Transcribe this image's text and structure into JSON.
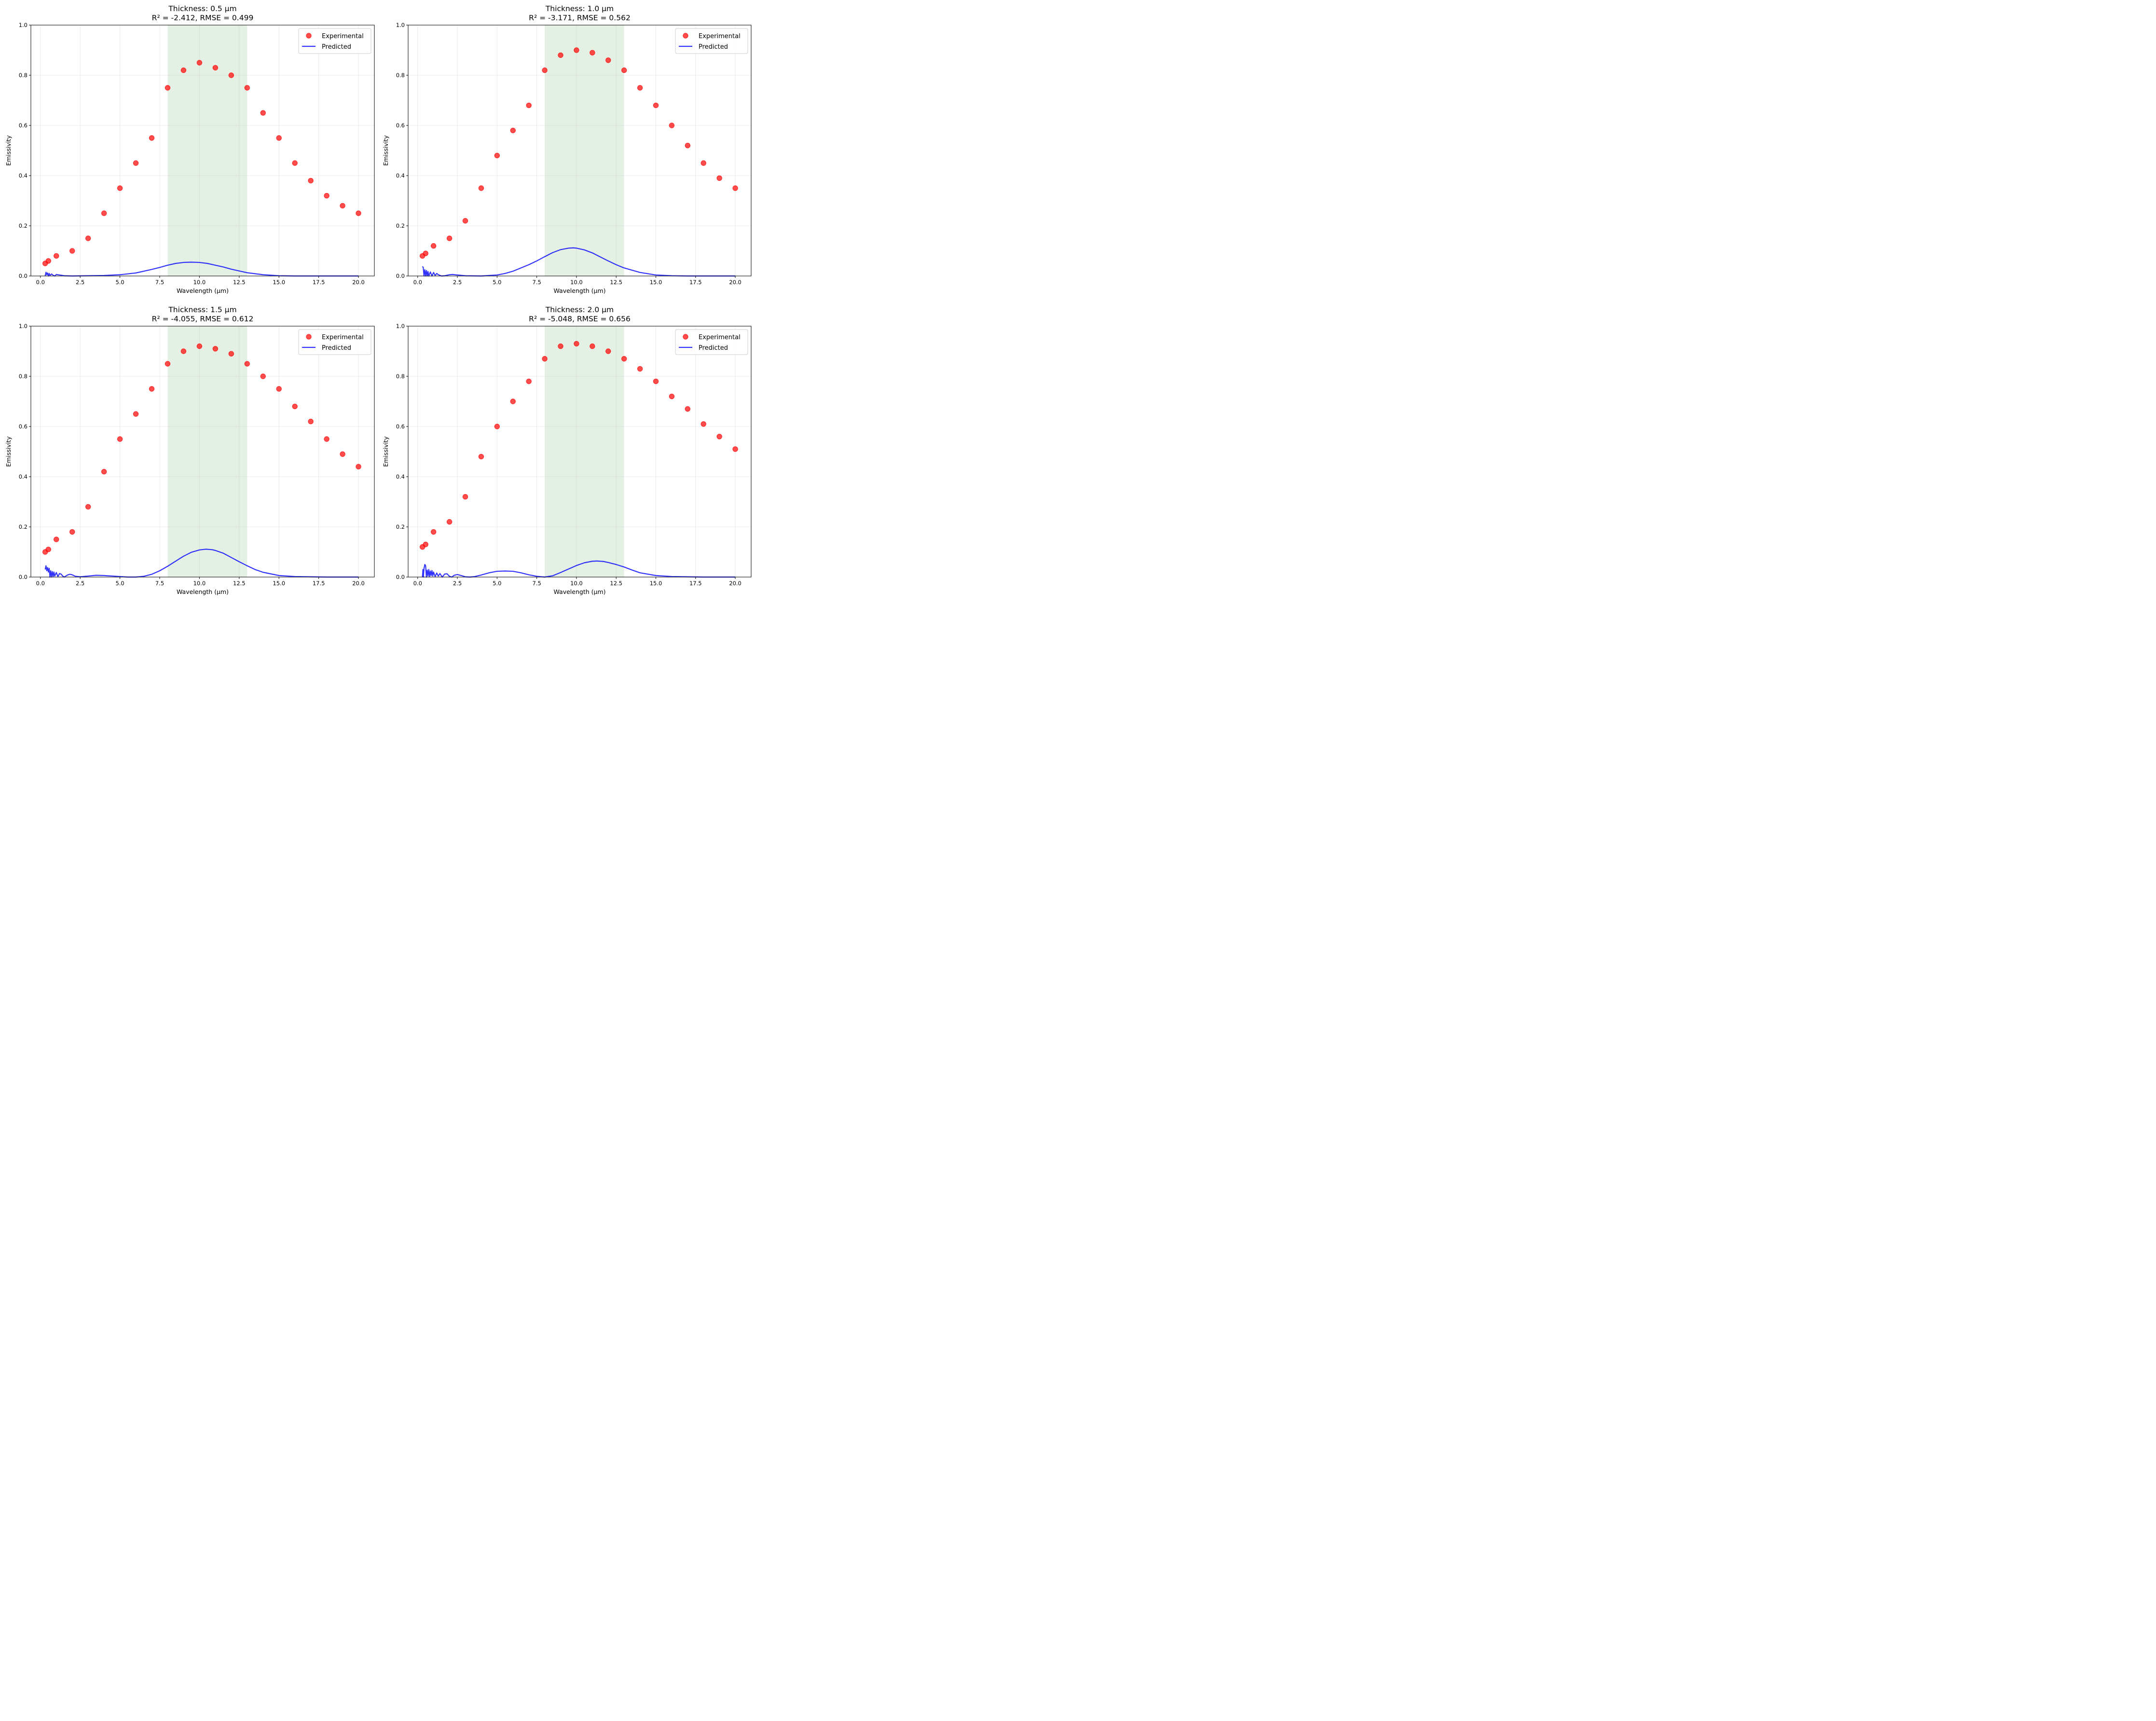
{
  "figure": {
    "panels": 4,
    "layout": "2x2"
  },
  "colors": {
    "experimental": "#ff0000",
    "predicted": "#0000ff",
    "band": "#2e8b2e",
    "grid": "#d9d9d9"
  },
  "chart_data": [
    {
      "type": "scatter+line",
      "title": "Thickness: 0.5 µm",
      "subtitle": "R² = -2.412, RMSE = 0.499",
      "xlabel": "Wavelength (µm)",
      "ylabel": "Emissivity",
      "xlim": [
        -0.6,
        21.0
      ],
      "ylim": [
        0.0,
        1.0
      ],
      "xticks": [
        "0.0",
        "2.5",
        "5.0",
        "7.5",
        "10.0",
        "12.5",
        "15.0",
        "17.5",
        "20.0"
      ],
      "yticks": [
        "0.0",
        "0.2",
        "0.4",
        "0.6",
        "0.8",
        "1.0"
      ],
      "grid": true,
      "legend": {
        "placement": "top-right",
        "entries": [
          "Experimental",
          "Predicted"
        ]
      },
      "shaded_band": [
        8.0,
        13.0
      ],
      "series": [
        {
          "name": "Experimental",
          "kind": "scatter",
          "x": [
            0.3,
            0.5,
            1,
            2,
            3,
            4,
            5,
            6,
            7,
            8,
            9,
            10,
            11,
            12,
            13,
            14,
            15,
            16,
            17,
            18,
            19,
            20
          ],
          "y": [
            0.05,
            0.06,
            0.08,
            0.1,
            0.15,
            0.25,
            0.35,
            0.45,
            0.55,
            0.75,
            0.82,
            0.85,
            0.83,
            0.8,
            0.75,
            0.65,
            0.55,
            0.45,
            0.38,
            0.32,
            0.28,
            0.25
          ]
        },
        {
          "name": "Predicted",
          "kind": "line",
          "x": [
            0.3,
            0.35,
            0.4,
            0.45,
            0.5,
            0.55,
            0.6,
            0.7,
            0.8,
            0.9,
            1.0,
            1.2,
            1.5,
            2.0,
            3.0,
            4.0,
            5.0,
            6.0,
            7.0,
            7.5,
            8.0,
            8.5,
            9.0,
            9.5,
            10.0,
            10.5,
            11.0,
            11.5,
            12.0,
            12.5,
            13.0,
            14.0,
            15.0,
            16.0,
            17.0,
            18.0,
            19.0,
            20.0
          ],
          "y": [
            0.0,
            0.015,
            0.005,
            0.012,
            0.0,
            0.01,
            0.002,
            0.008,
            0.003,
            0.0,
            0.006,
            0.004,
            0.001,
            0.0,
            0.001,
            0.002,
            0.005,
            0.012,
            0.026,
            0.034,
            0.043,
            0.05,
            0.054,
            0.055,
            0.054,
            0.05,
            0.043,
            0.036,
            0.027,
            0.02,
            0.013,
            0.005,
            0.001,
            0.0,
            0.0,
            0.0,
            0.0,
            0.0
          ]
        }
      ]
    },
    {
      "type": "scatter+line",
      "title": "Thickness: 1.0 µm",
      "subtitle": "R² = -3.171, RMSE = 0.562",
      "xlabel": "Wavelength (µm)",
      "ylabel": "Emissivity",
      "xlim": [
        -0.6,
        21.0
      ],
      "ylim": [
        0.0,
        1.0
      ],
      "xticks": [
        "0.0",
        "2.5",
        "5.0",
        "7.5",
        "10.0",
        "12.5",
        "15.0",
        "17.5",
        "20.0"
      ],
      "yticks": [
        "0.0",
        "0.2",
        "0.4",
        "0.6",
        "0.8",
        "1.0"
      ],
      "grid": true,
      "legend": {
        "placement": "top-right",
        "entries": [
          "Experimental",
          "Predicted"
        ]
      },
      "shaded_band": [
        8.0,
        13.0
      ],
      "series": [
        {
          "name": "Experimental",
          "kind": "scatter",
          "x": [
            0.3,
            0.5,
            1,
            2,
            3,
            4,
            5,
            6,
            7,
            8,
            9,
            10,
            11,
            12,
            13,
            14,
            15,
            16,
            17,
            18,
            19,
            20
          ],
          "y": [
            0.08,
            0.09,
            0.12,
            0.15,
            0.22,
            0.35,
            0.48,
            0.58,
            0.68,
            0.82,
            0.88,
            0.9,
            0.89,
            0.86,
            0.82,
            0.75,
            0.68,
            0.6,
            0.52,
            0.45,
            0.39,
            0.35
          ]
        },
        {
          "name": "Predicted",
          "kind": "line",
          "x": [
            0.3,
            0.35,
            0.4,
            0.45,
            0.5,
            0.55,
            0.6,
            0.65,
            0.7,
            0.8,
            0.9,
            1.0,
            1.1,
            1.2,
            1.3,
            1.5,
            1.7,
            2.0,
            2.2,
            2.5,
            3.0,
            4.0,
            5.0,
            5.5,
            6.0,
            7.0,
            7.5,
            8.0,
            8.5,
            9.0,
            9.5,
            9.8,
            10.0,
            10.5,
            11.0,
            11.5,
            12.0,
            12.5,
            13.0,
            14.0,
            15.0,
            16.0,
            17.0,
            18.0,
            19.0,
            20.0
          ],
          "y": [
            0.038,
            0.034,
            0.0,
            0.025,
            0.0,
            0.022,
            0.0,
            0.018,
            0.0,
            0.016,
            0.0,
            0.014,
            0.002,
            0.01,
            0.005,
            0.0,
            0.001,
            0.005,
            0.006,
            0.004,
            0.001,
            0.0,
            0.004,
            0.01,
            0.019,
            0.045,
            0.06,
            0.077,
            0.093,
            0.105,
            0.111,
            0.112,
            0.111,
            0.104,
            0.092,
            0.076,
            0.06,
            0.045,
            0.032,
            0.014,
            0.004,
            0.001,
            0.0,
            0.0,
            0.0,
            0.0
          ]
        }
      ]
    },
    {
      "type": "scatter+line",
      "title": "Thickness: 1.5 µm",
      "subtitle": "R² = -4.055, RMSE = 0.612",
      "xlabel": "Wavelength (µm)",
      "ylabel": "Emissivity",
      "xlim": [
        -0.6,
        21.0
      ],
      "ylim": [
        0.0,
        1.0
      ],
      "xticks": [
        "0.0",
        "2.5",
        "5.0",
        "7.5",
        "10.0",
        "12.5",
        "15.0",
        "17.5",
        "20.0"
      ],
      "yticks": [
        "0.0",
        "0.2",
        "0.4",
        "0.6",
        "0.8",
        "1.0"
      ],
      "grid": true,
      "legend": {
        "placement": "top-right",
        "entries": [
          "Experimental",
          "Predicted"
        ]
      },
      "shaded_band": [
        8.0,
        13.0
      ],
      "series": [
        {
          "name": "Experimental",
          "kind": "scatter",
          "x": [
            0.3,
            0.5,
            1,
            2,
            3,
            4,
            5,
            6,
            7,
            8,
            9,
            10,
            11,
            12,
            13,
            14,
            15,
            16,
            17,
            18,
            19,
            20
          ],
          "y": [
            0.1,
            0.11,
            0.15,
            0.18,
            0.28,
            0.42,
            0.55,
            0.65,
            0.75,
            0.85,
            0.9,
            0.92,
            0.91,
            0.89,
            0.85,
            0.8,
            0.75,
            0.68,
            0.62,
            0.55,
            0.49,
            0.44
          ]
        },
        {
          "name": "Predicted",
          "kind": "line",
          "x": [
            0.3,
            0.35,
            0.4,
            0.45,
            0.5,
            0.55,
            0.6,
            0.65,
            0.7,
            0.75,
            0.8,
            0.85,
            0.9,
            1.0,
            1.1,
            1.2,
            1.3,
            1.4,
            1.5,
            1.7,
            1.85,
            2.0,
            2.2,
            2.5,
            3.0,
            3.5,
            4.0,
            5.0,
            5.5,
            6.0,
            6.5,
            7.0,
            7.5,
            8.0,
            8.5,
            9.0,
            9.5,
            10.0,
            10.4,
            10.8,
            11.0,
            11.5,
            12.0,
            12.5,
            13.0,
            13.5,
            14.0,
            15.0,
            16.0,
            17.0,
            18.0,
            19.0,
            20.0
          ],
          "y": [
            0.03,
            0.045,
            0.025,
            0.038,
            0.02,
            0.035,
            0.0,
            0.025,
            0.0,
            0.022,
            0.002,
            0.02,
            0.004,
            0.018,
            0.002,
            0.014,
            0.012,
            0.004,
            0.0,
            0.008,
            0.011,
            0.009,
            0.003,
            0.001,
            0.004,
            0.007,
            0.006,
            0.002,
            0.0,
            0.0,
            0.003,
            0.011,
            0.025,
            0.043,
            0.063,
            0.083,
            0.099,
            0.108,
            0.111,
            0.109,
            0.106,
            0.095,
            0.078,
            0.061,
            0.045,
            0.03,
            0.019,
            0.006,
            0.002,
            0.001,
            0.0,
            0.0,
            0.0
          ]
        }
      ]
    },
    {
      "type": "scatter+line",
      "title": "Thickness: 2.0 µm",
      "subtitle": "R² = -5.048, RMSE = 0.656",
      "xlabel": "Wavelength (µm)",
      "ylabel": "Emissivity",
      "xlim": [
        -0.6,
        21.0
      ],
      "ylim": [
        0.0,
        1.0
      ],
      "xticks": [
        "0.0",
        "2.5",
        "5.0",
        "7.5",
        "10.0",
        "12.5",
        "15.0",
        "17.5",
        "20.0"
      ],
      "yticks": [
        "0.0",
        "0.2",
        "0.4",
        "0.6",
        "0.8",
        "1.0"
      ],
      "grid": true,
      "legend": {
        "placement": "top-right",
        "entries": [
          "Experimental",
          "Predicted"
        ]
      },
      "shaded_band": [
        8.0,
        13.0
      ],
      "series": [
        {
          "name": "Experimental",
          "kind": "scatter",
          "x": [
            0.3,
            0.5,
            1,
            2,
            3,
            4,
            5,
            6,
            7,
            8,
            9,
            10,
            11,
            12,
            13,
            14,
            15,
            16,
            17,
            18,
            19,
            20
          ],
          "y": [
            0.12,
            0.13,
            0.18,
            0.22,
            0.32,
            0.48,
            0.6,
            0.7,
            0.78,
            0.87,
            0.92,
            0.93,
            0.92,
            0.9,
            0.87,
            0.83,
            0.78,
            0.72,
            0.67,
            0.61,
            0.56,
            0.51
          ]
        },
        {
          "name": "Predicted",
          "kind": "line",
          "x": [
            0.3,
            0.33,
            0.36,
            0.4,
            0.45,
            0.5,
            0.55,
            0.6,
            0.65,
            0.7,
            0.75,
            0.8,
            0.85,
            0.9,
            0.95,
            1.0,
            1.1,
            1.2,
            1.3,
            1.4,
            1.55,
            1.7,
            1.85,
            2.0,
            2.15,
            2.3,
            2.5,
            2.75,
            3.0,
            3.3,
            3.6,
            4.0,
            4.5,
            5.0,
            5.5,
            6.0,
            6.5,
            7.0,
            7.5,
            8.0,
            8.5,
            9.0,
            9.5,
            10.0,
            10.5,
            11.0,
            11.3,
            11.7,
            12.0,
            12.5,
            13.0,
            13.5,
            14.0,
            15.0,
            16.0,
            17.0,
            18.0,
            19.0,
            20.0
          ],
          "y": [
            0.0,
            0.03,
            0.0,
            0.035,
            0.05,
            0.045,
            0.0,
            0.028,
            0.004,
            0.03,
            0.002,
            0.024,
            0.006,
            0.026,
            0.004,
            0.02,
            0.002,
            0.016,
            0.004,
            0.014,
            0.0,
            0.012,
            0.013,
            0.003,
            0.0,
            0.007,
            0.01,
            0.006,
            0.001,
            0.0,
            0.002,
            0.008,
            0.017,
            0.023,
            0.024,
            0.023,
            0.017,
            0.009,
            0.003,
            0.0,
            0.005,
            0.018,
            0.032,
            0.046,
            0.057,
            0.063,
            0.064,
            0.062,
            0.058,
            0.05,
            0.04,
            0.028,
            0.017,
            0.006,
            0.002,
            0.001,
            0.0,
            0.0,
            0.0
          ]
        }
      ]
    }
  ]
}
